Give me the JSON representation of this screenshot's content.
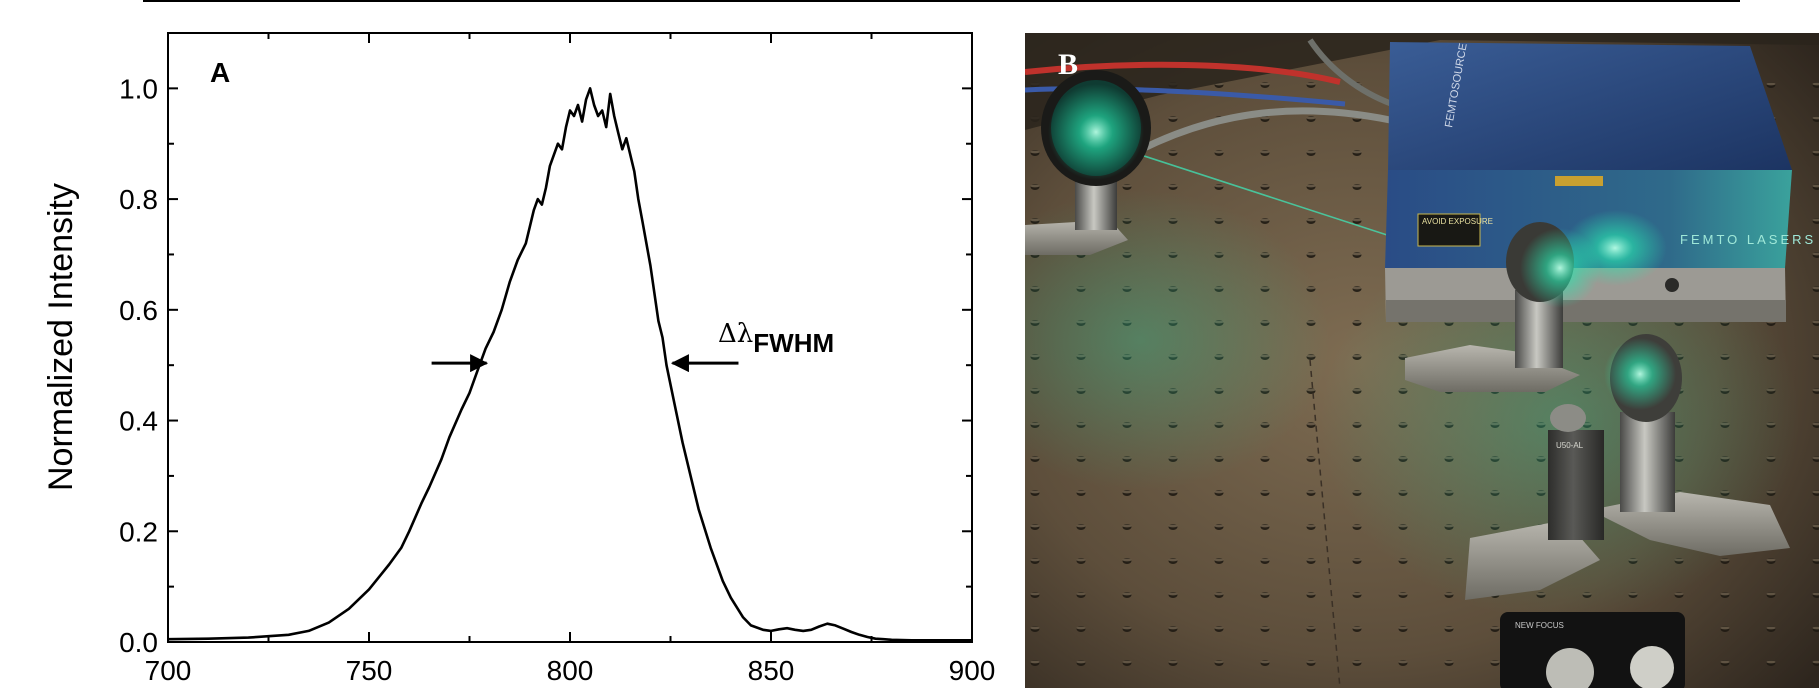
{
  "figure": {
    "panel_a_label": "A",
    "panel_b_label": "B"
  },
  "chart_data": {
    "type": "line",
    "title": "",
    "xlabel": "",
    "ylabel": "Normalized Intensity",
    "xlim": [
      700,
      900
    ],
    "ylim": [
      0.0,
      1.1
    ],
    "x_ticks": [
      "700",
      "750",
      "800",
      "850",
      "900"
    ],
    "y_ticks": [
      "0.0",
      "0.2",
      "0.4",
      "0.6",
      "0.8",
      "1.0"
    ],
    "grid": false,
    "annotation": {
      "symbol": "Δλ",
      "subscript": "FWHM",
      "half_max_level": 0.5,
      "left_x": 780,
      "right_x": 824
    },
    "series": [
      {
        "x": [
          700,
          710,
          720,
          730,
          735,
          740,
          745,
          750,
          755,
          758,
          760,
          763,
          765,
          768,
          770,
          773,
          775,
          777,
          779,
          781,
          783,
          785,
          787,
          789,
          790,
          791,
          792,
          793,
          794,
          795,
          796,
          797,
          798,
          799,
          800,
          801,
          802,
          803,
          804,
          805,
          806,
          807,
          808,
          809,
          810,
          811,
          812,
          813,
          814,
          815,
          816,
          817,
          818,
          819,
          820,
          821,
          822,
          823,
          824,
          826,
          828,
          830,
          832,
          835,
          838,
          840,
          843,
          845,
          848,
          850,
          852,
          854,
          856,
          858,
          860,
          862,
          864,
          866,
          868,
          870,
          872,
          874,
          876,
          878,
          880,
          885,
          890,
          900
        ],
        "y": [
          0.005,
          0.006,
          0.008,
          0.013,
          0.02,
          0.035,
          0.06,
          0.095,
          0.14,
          0.17,
          0.2,
          0.25,
          0.28,
          0.33,
          0.37,
          0.42,
          0.45,
          0.49,
          0.53,
          0.56,
          0.6,
          0.65,
          0.69,
          0.72,
          0.75,
          0.78,
          0.8,
          0.79,
          0.82,
          0.86,
          0.88,
          0.9,
          0.89,
          0.93,
          0.96,
          0.95,
          0.97,
          0.94,
          0.98,
          1.0,
          0.97,
          0.95,
          0.96,
          0.93,
          0.99,
          0.95,
          0.92,
          0.89,
          0.91,
          0.88,
          0.85,
          0.8,
          0.76,
          0.72,
          0.68,
          0.63,
          0.58,
          0.55,
          0.5,
          0.43,
          0.36,
          0.3,
          0.24,
          0.17,
          0.11,
          0.08,
          0.045,
          0.03,
          0.022,
          0.02,
          0.023,
          0.025,
          0.022,
          0.02,
          0.022,
          0.028,
          0.033,
          0.03,
          0.024,
          0.018,
          0.013,
          0.009,
          0.006,
          0.005,
          0.004,
          0.003,
          0.003,
          0.003
        ]
      }
    ]
  },
  "photo": {
    "device_brand": "FEMTOSOURCE",
    "warning_label": "AVOID EXPOSURE",
    "device_maker": "FEMTO LASERS",
    "mount_label": "U50-AL",
    "mount_brand": "NEW FOCUS",
    "colors": {
      "table": "#6a5a44",
      "laser_glow": "#28e8b0",
      "housing_blue": "#2c4c82",
      "beam": "#3cf0c0"
    }
  }
}
